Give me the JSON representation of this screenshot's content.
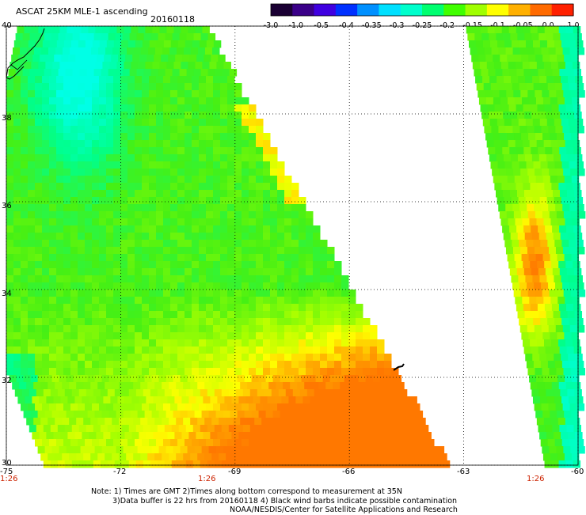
{
  "header": {
    "product_title": "ASCAT 25KM MLE-1 ascending",
    "date": "20160118"
  },
  "colorbar": {
    "tick_labels": [
      "-3.0",
      "-1.0",
      "-0.5",
      "-0.4",
      "-0.35",
      "-0.3",
      "-0.25",
      "-0.2",
      "-0.15",
      "-0.1",
      "-0.05",
      "0.0",
      "1.0"
    ],
    "colors": [
      "#1a0033",
      "#3a0088",
      "#3f00e0",
      "#0030ff",
      "#0090ff",
      "#00e0ff",
      "#00ffcc",
      "#00ff70",
      "#40ff00",
      "#a0ff00",
      "#ffff00",
      "#ffb000",
      "#ff6a00",
      "#ff2000"
    ]
  },
  "map": {
    "lon_min": -75,
    "lon_max": -60,
    "lat_min": 30,
    "lat_max": 40,
    "lon_labels": [
      "-75",
      "-72",
      "-69",
      "-66",
      "-63",
      "-60"
    ],
    "lat_labels": [
      "40",
      "38",
      "36",
      "34",
      "32",
      "30"
    ],
    "pass_time_labels": [
      "1:26",
      "1:26",
      "1:26"
    ],
    "background_color": "#ffffff",
    "gridline_style": "dotted"
  },
  "notes": {
    "line1": "Note: 1) Times are GMT 2)Times along bottom correspond to measurement at 35N",
    "line2": "3)Data buffer is 22 hrs from 20160118 4) Black wind barbs indicate possible contamination",
    "line3": "NOAA/NESDIS/Center for Satellite Applications and Research"
  }
}
